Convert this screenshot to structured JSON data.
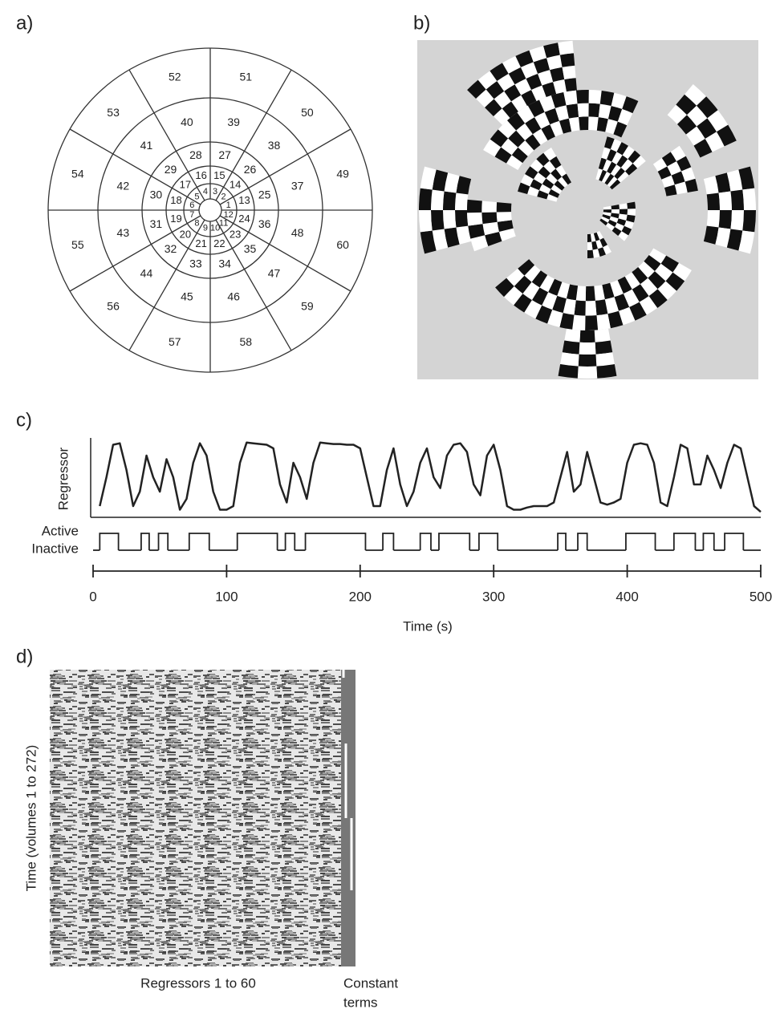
{
  "figure": {
    "panel_a": {
      "label": "a)",
      "rings": [
        [
          1,
          2,
          3,
          4,
          5,
          6,
          7,
          8,
          9,
          10,
          11,
          12
        ],
        [
          13,
          14,
          15,
          16,
          17,
          18,
          19,
          20,
          21,
          22,
          23,
          24
        ],
        [
          25,
          26,
          27,
          28,
          29,
          30,
          31,
          32,
          33,
          34,
          35,
          36
        ],
        [
          37,
          38,
          39,
          40,
          41,
          42,
          43,
          44,
          45,
          46,
          47,
          48
        ],
        [
          49,
          50,
          51,
          52,
          53,
          54,
          55,
          56,
          57,
          58,
          59,
          60
        ]
      ]
    },
    "panel_b": {
      "label": "b)"
    },
    "panel_d": {
      "label": "d)",
      "ylabel": "Time (volumes 1 to 272)",
      "xlabel": "Regressors 1 to 60",
      "constant_label": [
        "Constant",
        "terms"
      ]
    }
  },
  "chart_data": {
    "type": "line",
    "label": "c)",
    "ylabel": "Regressor",
    "xlabel": "Time (s)",
    "xlim": [
      0,
      500
    ],
    "xticks": [
      0,
      100,
      200,
      300,
      400,
      500
    ],
    "ylim": [
      0,
      1
    ],
    "x": [
      0,
      5,
      10,
      15,
      20,
      25,
      30,
      35,
      40,
      45,
      50,
      55,
      60,
      65,
      70,
      75,
      80,
      85,
      90,
      95,
      100,
      105,
      110,
      115,
      120,
      125,
      130,
      135,
      140,
      145,
      150,
      155,
      160,
      165,
      170,
      175,
      180,
      185,
      190,
      195,
      200,
      205,
      210,
      215,
      220,
      225,
      230,
      235,
      240,
      245,
      250,
      255,
      260,
      265,
      270,
      275,
      280,
      285,
      290,
      295,
      300,
      305,
      310,
      315,
      320,
      325,
      330,
      335,
      340,
      345,
      350,
      355,
      360,
      365,
      370,
      375,
      380,
      385,
      390,
      395,
      400,
      405,
      410,
      415,
      420,
      425,
      430,
      435,
      440,
      445,
      450,
      455,
      460,
      465,
      470,
      475,
      480,
      485,
      490,
      495,
      500
    ],
    "series": [
      {
        "color": "#222222",
        "values": [
          null,
          0.1,
          0.5,
          0.95,
          0.97,
          0.6,
          0.1,
          0.3,
          0.8,
          0.5,
          0.3,
          0.75,
          0.5,
          0.05,
          0.2,
          0.7,
          0.97,
          0.8,
          0.3,
          0.05,
          0.05,
          0.1,
          0.7,
          0.98,
          0.97,
          0.96,
          0.95,
          0.9,
          0.4,
          0.15,
          0.7,
          0.5,
          0.2,
          0.7,
          0.98,
          0.97,
          0.96,
          0.96,
          0.95,
          0.95,
          0.9,
          0.5,
          0.1,
          0.1,
          0.6,
          0.9,
          0.4,
          0.1,
          0.3,
          0.7,
          0.9,
          0.5,
          0.35,
          0.8,
          0.95,
          0.97,
          0.85,
          0.4,
          0.25,
          0.8,
          0.95,
          0.6,
          0.1,
          0.05,
          0.05,
          0.08,
          0.1,
          0.1,
          0.1,
          0.15,
          0.5,
          0.85,
          0.3,
          0.4,
          0.85,
          0.5,
          0.15,
          0.12,
          0.15,
          0.2,
          0.7,
          0.95,
          0.97,
          0.95,
          0.7,
          0.15,
          0.1,
          0.5,
          0.95,
          0.9,
          0.4,
          0.4,
          0.8,
          0.6,
          0.35,
          0.7,
          0.95,
          0.9,
          0.5,
          0.1,
          0.02
        ]
      }
    ],
    "boxcar": {
      "labels": [
        "Active",
        "Inactive"
      ],
      "color": "#222222",
      "blocks": [
        [
          5,
          19
        ],
        [
          36,
          42
        ],
        [
          49,
          56
        ],
        [
          72,
          87
        ],
        [
          108,
          138
        ],
        [
          144,
          151
        ],
        [
          159,
          204
        ],
        [
          217,
          225
        ],
        [
          245,
          253
        ],
        [
          259,
          282
        ],
        [
          289,
          303
        ],
        [
          348,
          354
        ],
        [
          363,
          370
        ],
        [
          399,
          421
        ],
        [
          435,
          451
        ],
        [
          457,
          465
        ],
        [
          473,
          487
        ]
      ]
    }
  }
}
